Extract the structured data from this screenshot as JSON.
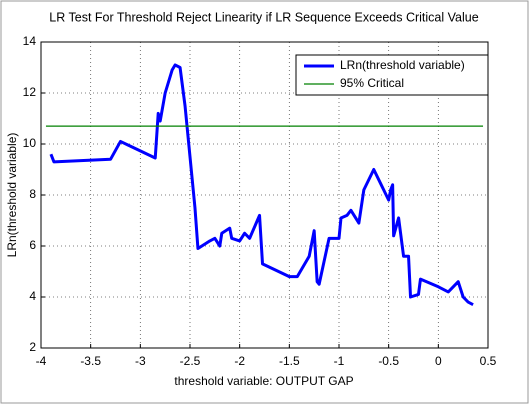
{
  "chart_data": {
    "type": "line",
    "title": "LR Test For Threshold Reject Linearity if LR Sequence Exceeds Critical Value",
    "x_label": "threshold variable: OUTPUT GAP",
    "y_label": "LRn(threshold variable)",
    "xlim": [
      -4,
      0.5
    ],
    "xticks": [
      -4,
      -3.5,
      -3,
      -2.5,
      -2,
      -1.5,
      -1,
      -0.5,
      0,
      0.5
    ],
    "ylim": [
      2,
      14
    ],
    "yticks": [
      2,
      4,
      6,
      8,
      10,
      12,
      14
    ],
    "grid": true,
    "legend": "top-right",
    "series": [
      {
        "name": "LRn(threshold variable)",
        "color": "#0000ff",
        "x": [
          -3.9,
          -3.87,
          -3.3,
          -3.2,
          -2.85,
          -2.82,
          -2.8,
          -2.75,
          -2.68,
          -2.65,
          -2.6,
          -2.55,
          -2.5,
          -2.45,
          -2.42,
          -2.3,
          -2.25,
          -2.2,
          -2.18,
          -2.1,
          -2.08,
          -2.0,
          -1.95,
          -1.9,
          -1.8,
          -1.77,
          -1.5,
          -1.42,
          -1.3,
          -1.25,
          -1.22,
          -1.2,
          -1.1,
          -1.0,
          -0.98,
          -0.92,
          -0.88,
          -0.8,
          -0.75,
          -0.65,
          -0.6,
          -0.5,
          -0.48,
          -0.46,
          -0.45,
          -0.4,
          -0.35,
          -0.3,
          -0.28,
          -0.2,
          -0.18,
          0,
          0.1,
          0.2,
          0.25,
          0.3,
          0.35
        ],
        "values": [
          9.6,
          9.3,
          9.4,
          10.1,
          9.45,
          11.2,
          10.9,
          12,
          12.9,
          13.1,
          13,
          11.5,
          9.5,
          7.5,
          5.9,
          6.2,
          6.3,
          6,
          6.5,
          6.7,
          6.3,
          6.2,
          6.5,
          6.3,
          7.2,
          5.3,
          4.8,
          4.8,
          5.6,
          6.6,
          4.6,
          4.5,
          6.3,
          6.3,
          7.1,
          7.2,
          7.4,
          6.9,
          8.2,
          9.0,
          8.6,
          7.8,
          8.2,
          8.4,
          6.4,
          7.1,
          5.6,
          5.6,
          4.0,
          4.1,
          4.7,
          4.4,
          4.2,
          4.6,
          4.0,
          3.8,
          3.7
        ]
      },
      {
        "name": "95% Critical",
        "color": "#008000",
        "x": [
          -3.95,
          0.45
        ],
        "values": [
          10.7,
          10.7
        ]
      }
    ]
  }
}
